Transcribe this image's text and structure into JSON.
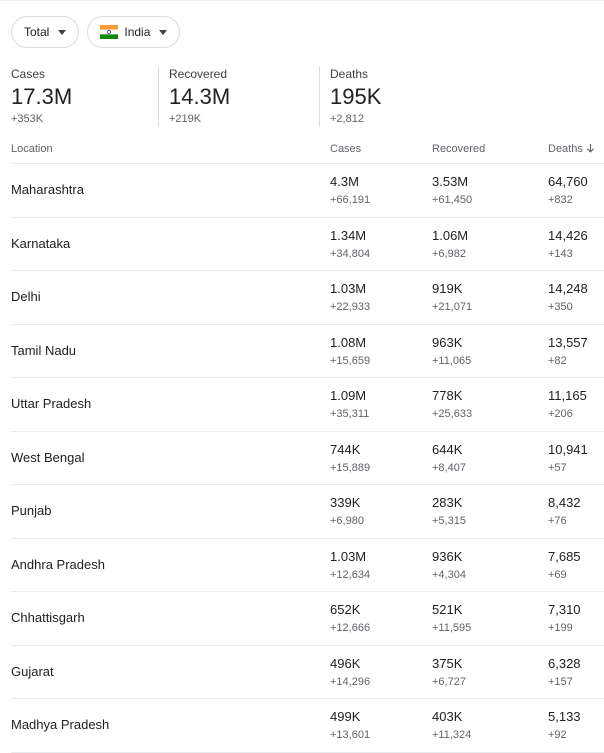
{
  "filters": {
    "scope_label": "Total",
    "country_label": "India"
  },
  "summary": [
    {
      "label": "Cases",
      "value": "17.3M",
      "delta": "+353K"
    },
    {
      "label": "Recovered",
      "value": "14.3M",
      "delta": "+219K"
    },
    {
      "label": "Deaths",
      "value": "195K",
      "delta": "+2,812"
    }
  ],
  "table": {
    "headers": {
      "location": "Location",
      "cases": "Cases",
      "recovered": "Recovered",
      "deaths": "Deaths"
    },
    "sort_icon": "arrow-down-icon",
    "rows": [
      {
        "location": "Maharashtra",
        "cases": "4.3M",
        "cases_delta": "+66,191",
        "recovered": "3.53M",
        "recovered_delta": "+61,450",
        "deaths": "64,760",
        "deaths_delta": "+832"
      },
      {
        "location": "Karnataka",
        "cases": "1.34M",
        "cases_delta": "+34,804",
        "recovered": "1.06M",
        "recovered_delta": "+6,982",
        "deaths": "14,426",
        "deaths_delta": "+143"
      },
      {
        "location": "Delhi",
        "cases": "1.03M",
        "cases_delta": "+22,933",
        "recovered": "919K",
        "recovered_delta": "+21,071",
        "deaths": "14,248",
        "deaths_delta": "+350"
      },
      {
        "location": "Tamil Nadu",
        "cases": "1.08M",
        "cases_delta": "+15,659",
        "recovered": "963K",
        "recovered_delta": "+11,065",
        "deaths": "13,557",
        "deaths_delta": "+82"
      },
      {
        "location": "Uttar Pradesh",
        "cases": "1.09M",
        "cases_delta": "+35,311",
        "recovered": "778K",
        "recovered_delta": "+25,633",
        "deaths": "11,165",
        "deaths_delta": "+206"
      },
      {
        "location": "West Bengal",
        "cases": "744K",
        "cases_delta": "+15,889",
        "recovered": "644K",
        "recovered_delta": "+8,407",
        "deaths": "10,941",
        "deaths_delta": "+57"
      },
      {
        "location": "Punjab",
        "cases": "339K",
        "cases_delta": "+6,980",
        "recovered": "283K",
        "recovered_delta": "+5,315",
        "deaths": "8,432",
        "deaths_delta": "+76"
      },
      {
        "location": "Andhra Pradesh",
        "cases": "1.03M",
        "cases_delta": "+12,634",
        "recovered": "936K",
        "recovered_delta": "+4,304",
        "deaths": "7,685",
        "deaths_delta": "+69"
      },
      {
        "location": "Chhattisgarh",
        "cases": "652K",
        "cases_delta": "+12,666",
        "recovered": "521K",
        "recovered_delta": "+11,595",
        "deaths": "7,310",
        "deaths_delta": "+199"
      },
      {
        "location": "Gujarat",
        "cases": "496K",
        "cases_delta": "+14,296",
        "recovered": "375K",
        "recovered_delta": "+6,727",
        "deaths": "6,328",
        "deaths_delta": "+157"
      },
      {
        "location": "Madhya Pradesh",
        "cases": "499K",
        "cases_delta": "+13,601",
        "recovered": "403K",
        "recovered_delta": "+11,324",
        "deaths": "5,133",
        "deaths_delta": "+92"
      }
    ]
  }
}
